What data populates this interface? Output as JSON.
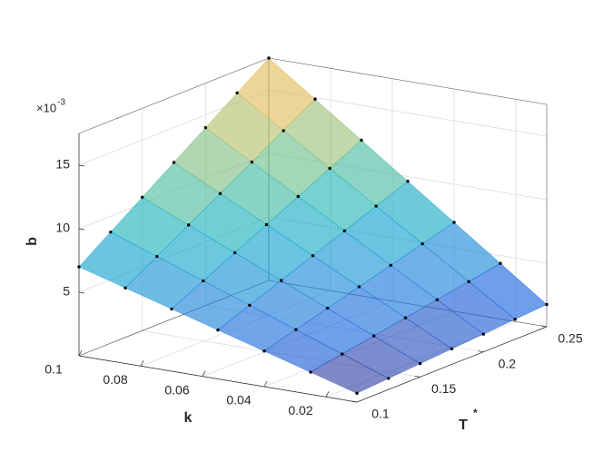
{
  "chart_data": {
    "type": "surface",
    "x_label": "k",
    "y_label": "T",
    "y_label_sup": "*",
    "z_label": "b",
    "z_exponent_base": "×10",
    "z_exponent": "-3",
    "k": [
      0.01,
      0.025,
      0.04,
      0.055,
      0.07,
      0.085,
      0.1
    ],
    "T": [
      0.1,
      0.125,
      0.15,
      0.175,
      0.2,
      0.225,
      0.25
    ],
    "z": [
      [
        0.0007,
        0.00175,
        0.0028,
        0.00385,
        0.0049,
        0.00595,
        0.007
      ],
      [
        0.000875,
        0.0021875,
        0.0035,
        0.0048125,
        0.006125,
        0.0074375,
        0.00875
      ],
      [
        0.00105,
        0.002625,
        0.0042,
        0.005775,
        0.00735,
        0.008925,
        0.0105
      ],
      [
        0.001225,
        0.0030625,
        0.0049,
        0.0067375,
        0.008575,
        0.0104125,
        0.01225
      ],
      [
        0.0014,
        0.0035,
        0.0056,
        0.0077,
        0.0098,
        0.0119,
        0.014
      ],
      [
        0.001575,
        0.0039375,
        0.0063,
        0.0086625,
        0.011025,
        0.0133875,
        0.01575
      ],
      [
        0.00175,
        0.004375,
        0.007,
        0.009625,
        0.01225,
        0.014875,
        0.0175
      ]
    ],
    "xlim": [
      0.01,
      0.1
    ],
    "xticks": [
      0.02,
      0.04,
      0.06,
      0.08,
      0.1
    ],
    "ylim": [
      0.1,
      0.25
    ],
    "yticks": [
      0.1,
      0.15,
      0.2,
      0.25
    ],
    "zlim": [
      0,
      0.0175
    ],
    "zticks": [
      {
        "value": 0.005,
        "label": "5"
      },
      {
        "value": 0.01,
        "label": "10"
      },
      {
        "value": 0.015,
        "label": "15"
      }
    ],
    "colormap": "parula",
    "grid": true,
    "marker_color": "#000000"
  }
}
